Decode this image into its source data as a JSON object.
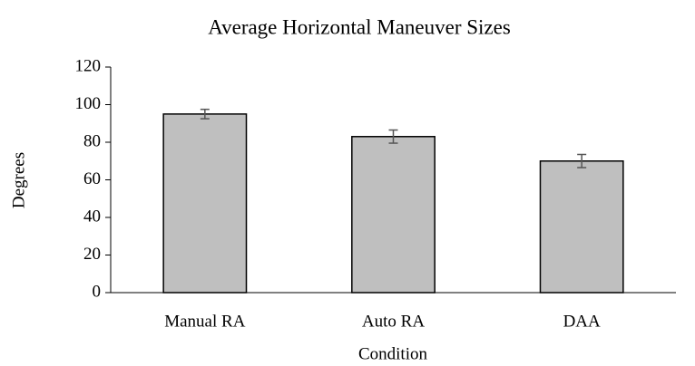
{
  "chart_data": {
    "type": "bar",
    "title": "Average Horizontal Maneuver Sizes",
    "xlabel": "Condition",
    "ylabel": "Degrees",
    "categories": [
      "Manual RA",
      "Auto RA",
      "DAA"
    ],
    "values": [
      95,
      83,
      70
    ],
    "errors": [
      2.5,
      3.5,
      3.5
    ],
    "color": "#bfbfbf",
    "ylim": [
      0,
      120
    ],
    "yticks": [
      0,
      20,
      40,
      60,
      80,
      100,
      120
    ],
    "grid": false
  }
}
